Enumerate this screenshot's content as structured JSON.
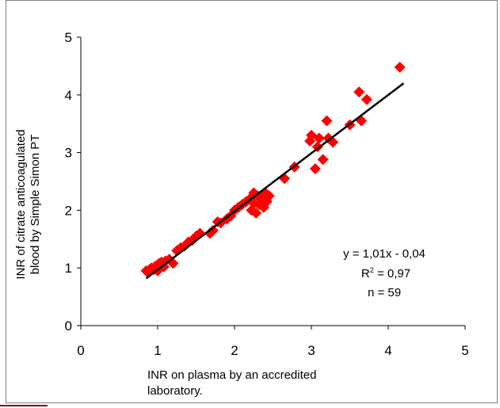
{
  "chart_data": {
    "type": "scatter",
    "xlabel_lines": [
      "INR on plasma by an accredited",
      "laboratory."
    ],
    "ylabel_lines": [
      "INR of citrate anticoagulated",
      "blood by Simple Simon PT"
    ],
    "xlim": [
      0,
      5
    ],
    "ylim": [
      0,
      5
    ],
    "xticks": [
      "0",
      "1",
      "2",
      "3",
      "4",
      "5"
    ],
    "yticks": [
      "0",
      "1",
      "2",
      "3",
      "4",
      "5"
    ],
    "grid": false,
    "legend": "none",
    "marker_color": "#ff0000",
    "line_color": "#000000",
    "regression": {
      "slope": 1.01,
      "intercept": -0.04,
      "x_start": 0.85,
      "x_end": 4.2
    },
    "annotations": {
      "equation": "y = 1,01x - 0,04",
      "r2_prefix": "R",
      "r2_sup": "2",
      "r2_value": " = 0,97",
      "n": "n = 59"
    },
    "points": [
      [
        0.85,
        0.95
      ],
      [
        0.88,
        0.92
      ],
      [
        0.9,
        0.98
      ],
      [
        0.92,
        1.0
      ],
      [
        0.95,
        0.97
      ],
      [
        0.97,
        1.03
      ],
      [
        1.0,
        1.05
      ],
      [
        1.02,
        1.08
      ],
      [
        1.05,
        1.1
      ],
      [
        1.08,
        1.02
      ],
      [
        1.1,
        1.12
      ],
      [
        1.15,
        1.15
      ],
      [
        1.2,
        1.08
      ],
      [
        1.25,
        1.3
      ],
      [
        1.3,
        1.35
      ],
      [
        1.35,
        1.38
      ],
      [
        1.4,
        1.45
      ],
      [
        1.45,
        1.48
      ],
      [
        1.5,
        1.55
      ],
      [
        1.55,
        1.6
      ],
      [
        1.68,
        1.6
      ],
      [
        1.72,
        1.65
      ],
      [
        1.78,
        1.8
      ],
      [
        1.82,
        1.78
      ],
      [
        1.9,
        1.85
      ],
      [
        1.95,
        1.9
      ],
      [
        2.0,
        2.0
      ],
      [
        2.05,
        2.05
      ],
      [
        2.1,
        2.1
      ],
      [
        2.15,
        2.15
      ],
      [
        2.2,
        2.2
      ],
      [
        2.22,
        2.0
      ],
      [
        2.25,
        2.3
      ],
      [
        2.28,
        1.95
      ],
      [
        2.3,
        2.25
      ],
      [
        2.32,
        2.1
      ],
      [
        2.35,
        2.2
      ],
      [
        2.38,
        2.05
      ],
      [
        2.4,
        2.3
      ],
      [
        2.42,
        2.15
      ],
      [
        2.45,
        2.25
      ],
      [
        2.65,
        2.55
      ],
      [
        2.78,
        2.75
      ],
      [
        2.98,
        3.2
      ],
      [
        3.0,
        3.3
      ],
      [
        3.05,
        2.72
      ],
      [
        3.08,
        3.1
      ],
      [
        3.1,
        3.25
      ],
      [
        3.15,
        2.88
      ],
      [
        3.2,
        3.55
      ],
      [
        3.22,
        3.25
      ],
      [
        3.28,
        3.18
      ],
      [
        3.5,
        3.48
      ],
      [
        3.62,
        4.05
      ],
      [
        3.65,
        3.55
      ],
      [
        3.72,
        3.92
      ],
      [
        4.15,
        4.48
      ],
      [
        1.0,
        0.95
      ],
      [
        2.25,
        2.12
      ]
    ]
  }
}
